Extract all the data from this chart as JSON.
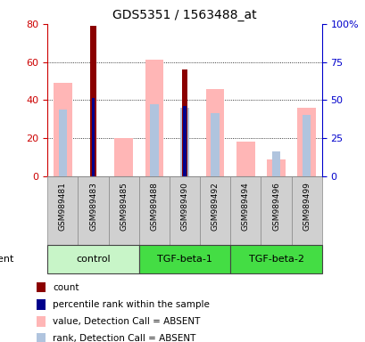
{
  "title": "GDS5351 / 1563488_at",
  "samples": [
    "GSM989481",
    "GSM989483",
    "GSM989485",
    "GSM989488",
    "GSM989490",
    "GSM989492",
    "GSM989494",
    "GSM989496",
    "GSM989499"
  ],
  "count": [
    null,
    79,
    null,
    null,
    56,
    null,
    null,
    null,
    null
  ],
  "percentile_rank": [
    null,
    41,
    null,
    null,
    37,
    null,
    null,
    null,
    null
  ],
  "value_absent": [
    49,
    null,
    20,
    61,
    null,
    46,
    18,
    9,
    36
  ],
  "rank_absent": [
    35,
    null,
    null,
    38,
    36,
    33,
    null,
    13,
    32
  ],
  "left_ylim": [
    0,
    80
  ],
  "right_ylim": [
    0,
    100
  ],
  "left_yticks": [
    0,
    20,
    40,
    60,
    80
  ],
  "right_yticks": [
    0,
    25,
    50,
    75,
    100
  ],
  "count_color": "#8B0000",
  "percentile_color": "#00008B",
  "value_absent_color": "#FFB6B6",
  "rank_absent_color": "#B0C4DE",
  "left_tick_color": "#cc0000",
  "right_tick_color": "#0000cc",
  "group_configs": [
    {
      "label": "control",
      "color": "#c8f5c8",
      "xstart": -0.5,
      "xend": 2.5
    },
    {
      "label": "TGF-beta-1",
      "color": "#44dd44",
      "xstart": 2.5,
      "xend": 5.5
    },
    {
      "label": "TGF-beta-2",
      "color": "#44dd44",
      "xstart": 5.5,
      "xend": 8.5
    }
  ],
  "legend_items": [
    {
      "color": "#8B0000",
      "label": "count"
    },
    {
      "color": "#00008B",
      "label": "percentile rank within the sample"
    },
    {
      "color": "#FFB6B6",
      "label": "value, Detection Call = ABSENT"
    },
    {
      "color": "#B0C4DE",
      "label": "rank, Detection Call = ABSENT"
    }
  ],
  "sample_cell_color": "#d0d0d0",
  "cell_border_color": "#888888",
  "agent_label": "agent"
}
